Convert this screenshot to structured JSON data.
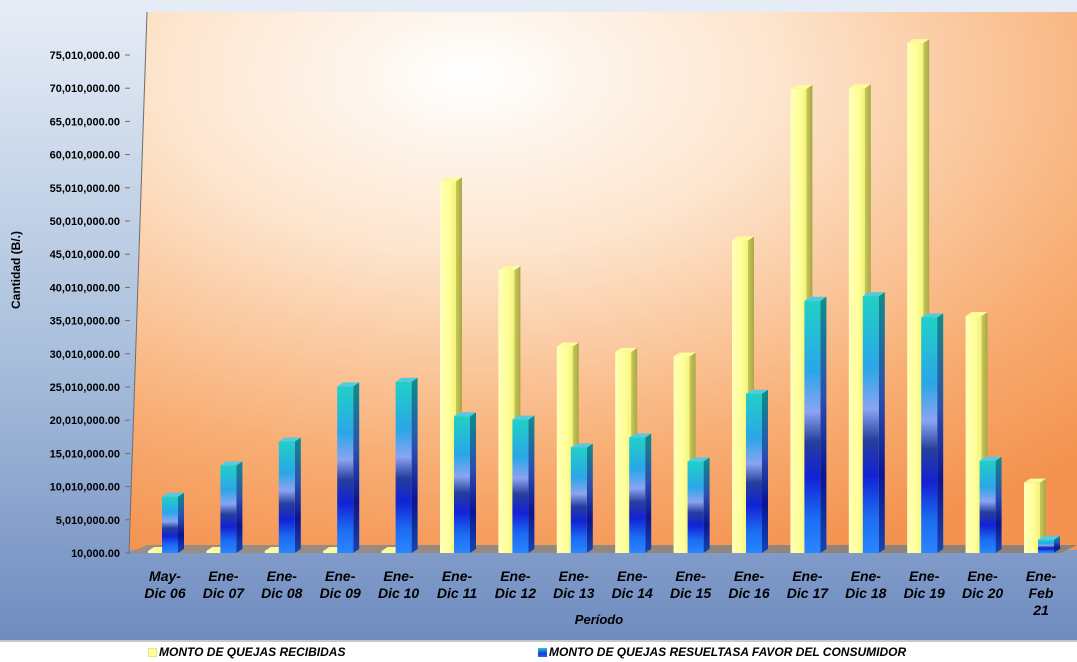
{
  "chart_data": {
    "type": "bar",
    "style": "3d-column",
    "xlabel": "Período",
    "ylabel": "Cantidad  (B/.)",
    "ylim": [
      10000,
      75010000
    ],
    "yticks": [
      "10,000.00",
      "5,010,000.00",
      "10,010,000.00",
      "15,010,000.00",
      "20,010,000.00",
      "25,010,000.00",
      "30,010,000.00",
      "35,010,000.00",
      "40,010,000.00",
      "45,010,000.00",
      "50,010,000.00",
      "55,010,000.00",
      "60,010,000.00",
      "65,010,000.00",
      "70,010,000.00",
      "75,010,000.00"
    ],
    "categories": [
      [
        "May-",
        "Dic 06"
      ],
      [
        "Ene-",
        "Dic 07"
      ],
      [
        "Ene-",
        "Dic 08"
      ],
      [
        "Ene-",
        "Dic 09"
      ],
      [
        "Ene-",
        "Dic 10"
      ],
      [
        "Ene-",
        "Dic 11"
      ],
      [
        "Ene-",
        "Dic 12"
      ],
      [
        "Ene-",
        "Dic 13"
      ],
      [
        "Ene-",
        "Dic 14"
      ],
      [
        "Ene-",
        "Dic 15"
      ],
      [
        "Ene-",
        "Dic 16"
      ],
      [
        "Ene-",
        "Dic 17"
      ],
      [
        "Ene-",
        "Dic 18"
      ],
      [
        "Ene-",
        "Dic 19"
      ],
      [
        "Ene-",
        "Dic 20"
      ],
      [
        "Ene-",
        "Feb",
        "21"
      ]
    ],
    "series": [
      {
        "name": "MONTO DE QUEJAS RECIBIDAS",
        "color": "#ffff99",
        "values": [
          10000,
          10000,
          10000,
          10000,
          10000,
          56000000,
          42600000,
          31100000,
          30300000,
          29600000,
          47100000,
          69900000,
          70000000,
          76800000,
          35700000,
          10600000
        ]
      },
      {
        "name": "MONTO DE QUEJAS RESUELTASA FAVOR DEL CONSUMIDOR",
        "color": "#1e6fe6",
        "values": [
          8500000,
          13200000,
          16800000,
          25100000,
          25800000,
          20600000,
          20100000,
          15900000,
          17400000,
          13800000,
          24000000,
          38000000,
          38700000,
          35500000,
          13900000,
          2000000
        ]
      }
    ],
    "grid": false,
    "legend_position": "bottom"
  },
  "legend": {
    "received_label": "MONTO DE QUEJAS RECIBIDAS",
    "resolved_label": "MONTO DE QUEJAS RESUELTASA FAVOR DEL CONSUMIDOR"
  }
}
